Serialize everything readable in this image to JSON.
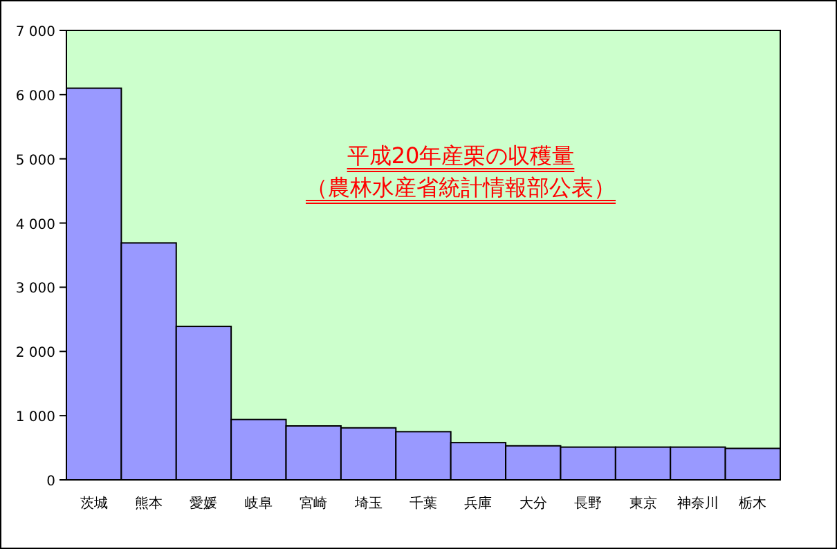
{
  "chart_data": {
    "type": "bar",
    "title": "平成20年産栗の収穫量",
    "subtitle": "（農林水産省統計情報部公表）",
    "categories": [
      "茨城",
      "熊本",
      "愛媛",
      "岐阜",
      "宮崎",
      "埼玉",
      "千葉",
      "兵庫",
      "大分",
      "長野",
      "東京",
      "神奈川",
      "栃木"
    ],
    "values": [
      6100,
      3690,
      2390,
      940,
      840,
      810,
      750,
      580,
      530,
      510,
      510,
      510,
      490
    ],
    "color": "#9999ff",
    "ylim": [
      0,
      7000
    ],
    "yticks": [
      {
        "value": 0,
        "label": "0"
      },
      {
        "value": 1000,
        "label": "1 000"
      },
      {
        "value": 2000,
        "label": "2 000"
      },
      {
        "value": 3000,
        "label": "3 000"
      },
      {
        "value": 4000,
        "label": "4 000"
      },
      {
        "value": 5000,
        "label": "5 000"
      },
      {
        "value": 6000,
        "label": "6 000"
      },
      {
        "value": 7000,
        "label": "7 000"
      }
    ]
  }
}
